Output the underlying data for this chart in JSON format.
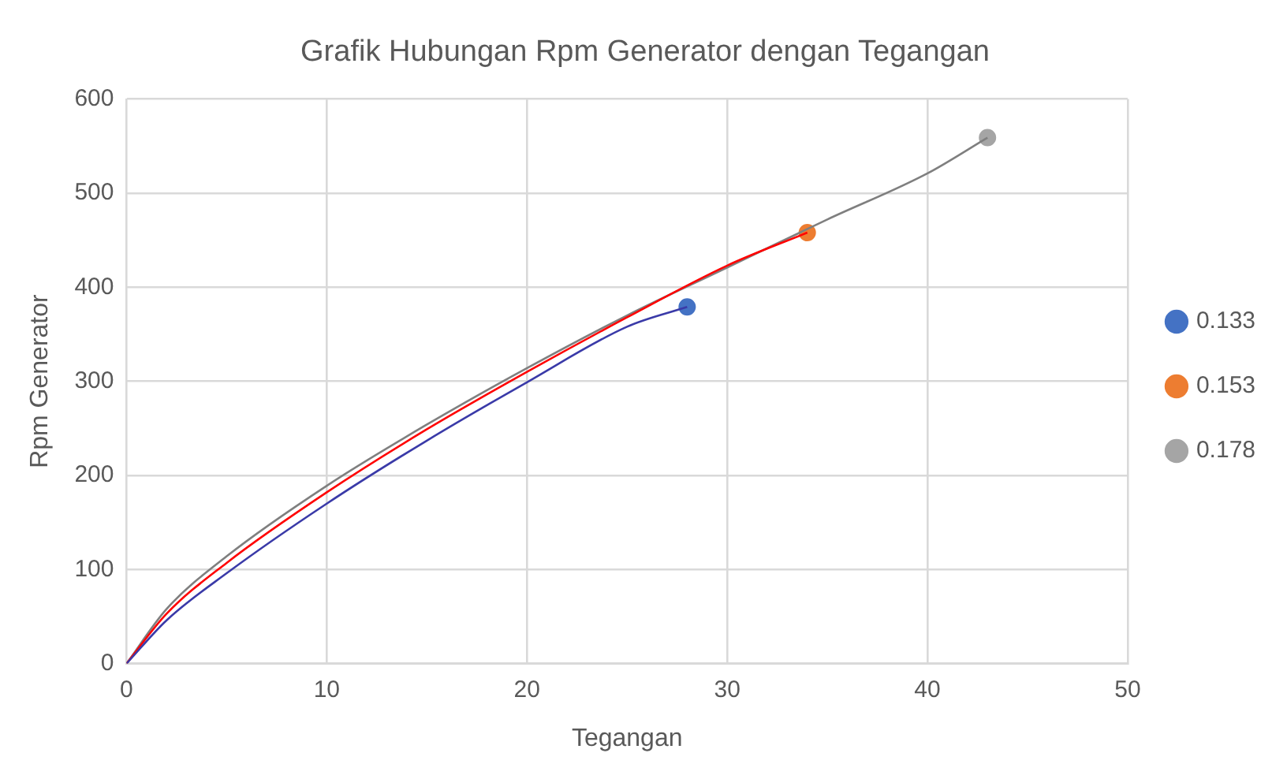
{
  "chart_data": {
    "type": "scatter",
    "title": "Grafik Hubungan Rpm Generator dengan Tegangan",
    "xlabel": "Tegangan",
    "ylabel": "Rpm Generator",
    "xlim": [
      0,
      50
    ],
    "xticks": [
      0,
      10,
      20,
      30,
      40,
      50
    ],
    "ylim": [
      0,
      600
    ],
    "yticks": [
      0,
      100,
      200,
      300,
      400,
      500,
      600
    ],
    "grid": true,
    "legend": "right",
    "marker": "circle",
    "series": [
      {
        "type": "line",
        "color": "#3a3aa8",
        "marker": "none",
        "x": [
          0,
          2,
          5,
          10,
          15,
          20,
          25,
          28
        ],
        "values": [
          0,
          46,
          96,
          170,
          237,
          299,
          358,
          379
        ]
      },
      {
        "type": "line",
        "color": "#ff0000",
        "marker": "none",
        "x": [
          0,
          2,
          5,
          10,
          15,
          20,
          25,
          30,
          34
        ],
        "values": [
          0,
          53,
          107,
          182,
          249,
          310,
          368,
          423,
          458
        ]
      },
      {
        "type": "line",
        "color": "#7f7f7f",
        "marker": "none",
        "x": [
          0,
          2,
          5,
          10,
          15,
          20,
          25,
          30,
          35,
          40,
          43
        ],
        "values": [
          0,
          58,
          114,
          189,
          254,
          314,
          370,
          421,
          472,
          521,
          559
        ]
      },
      {
        "name": "0.133",
        "color": "#4472c4",
        "x": [
          28
        ],
        "values": [
          379
        ]
      },
      {
        "name": "0.153",
        "color": "#ed7d31",
        "x": [
          34
        ],
        "values": [
          458
        ]
      },
      {
        "name": "0.178",
        "color": "#a5a5a5",
        "x": [
          43
        ],
        "values": [
          559
        ]
      }
    ]
  }
}
